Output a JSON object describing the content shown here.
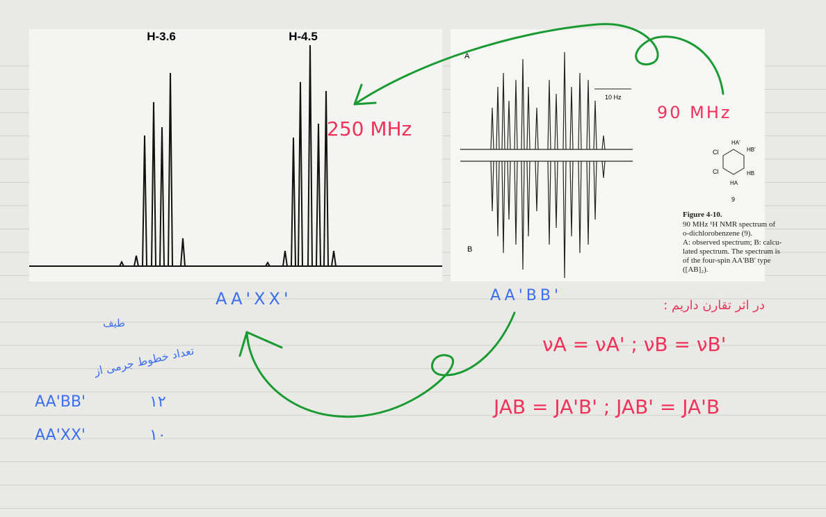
{
  "left_spectrum": {
    "peak_labels": [
      "H-3.6",
      "H-4.5"
    ],
    "frequency": "250 MHz",
    "spin_system": "AA'XX'"
  },
  "right_spectrum": {
    "panel_labels": [
      "A",
      "B"
    ],
    "scale": "10 Hz",
    "frequency": "90 MHz",
    "spin_system": "AA'BB'",
    "compound_number": "9",
    "atoms": [
      "Cl",
      "Cl",
      "HA'",
      "HB'",
      "HB",
      "HA"
    ],
    "figure_title": "Figure 4-10.",
    "caption_lines": [
      "90 MHz ¹H NMR spectrum of",
      "o-dichlorobenzene (9).",
      "A: observed spectrum; B: calcu-",
      "lated spectrum. The spectrum is",
      "of the four-spin AA'BB' type",
      "([AB]₂)."
    ]
  },
  "notes": {
    "heading": "در اثر تقارن داریم :",
    "equations": [
      "νA = νA'  ;  νB = νB'",
      "JAB = JA'B'  ;  JAB' = JA'B"
    ],
    "table_heading": [
      "طیف",
      "تعداد خطوط جرمی از"
    ],
    "table": [
      [
        "AA'BB'",
        "۱۲"
      ],
      [
        "AA'XX'",
        "۱۰"
      ]
    ]
  }
}
